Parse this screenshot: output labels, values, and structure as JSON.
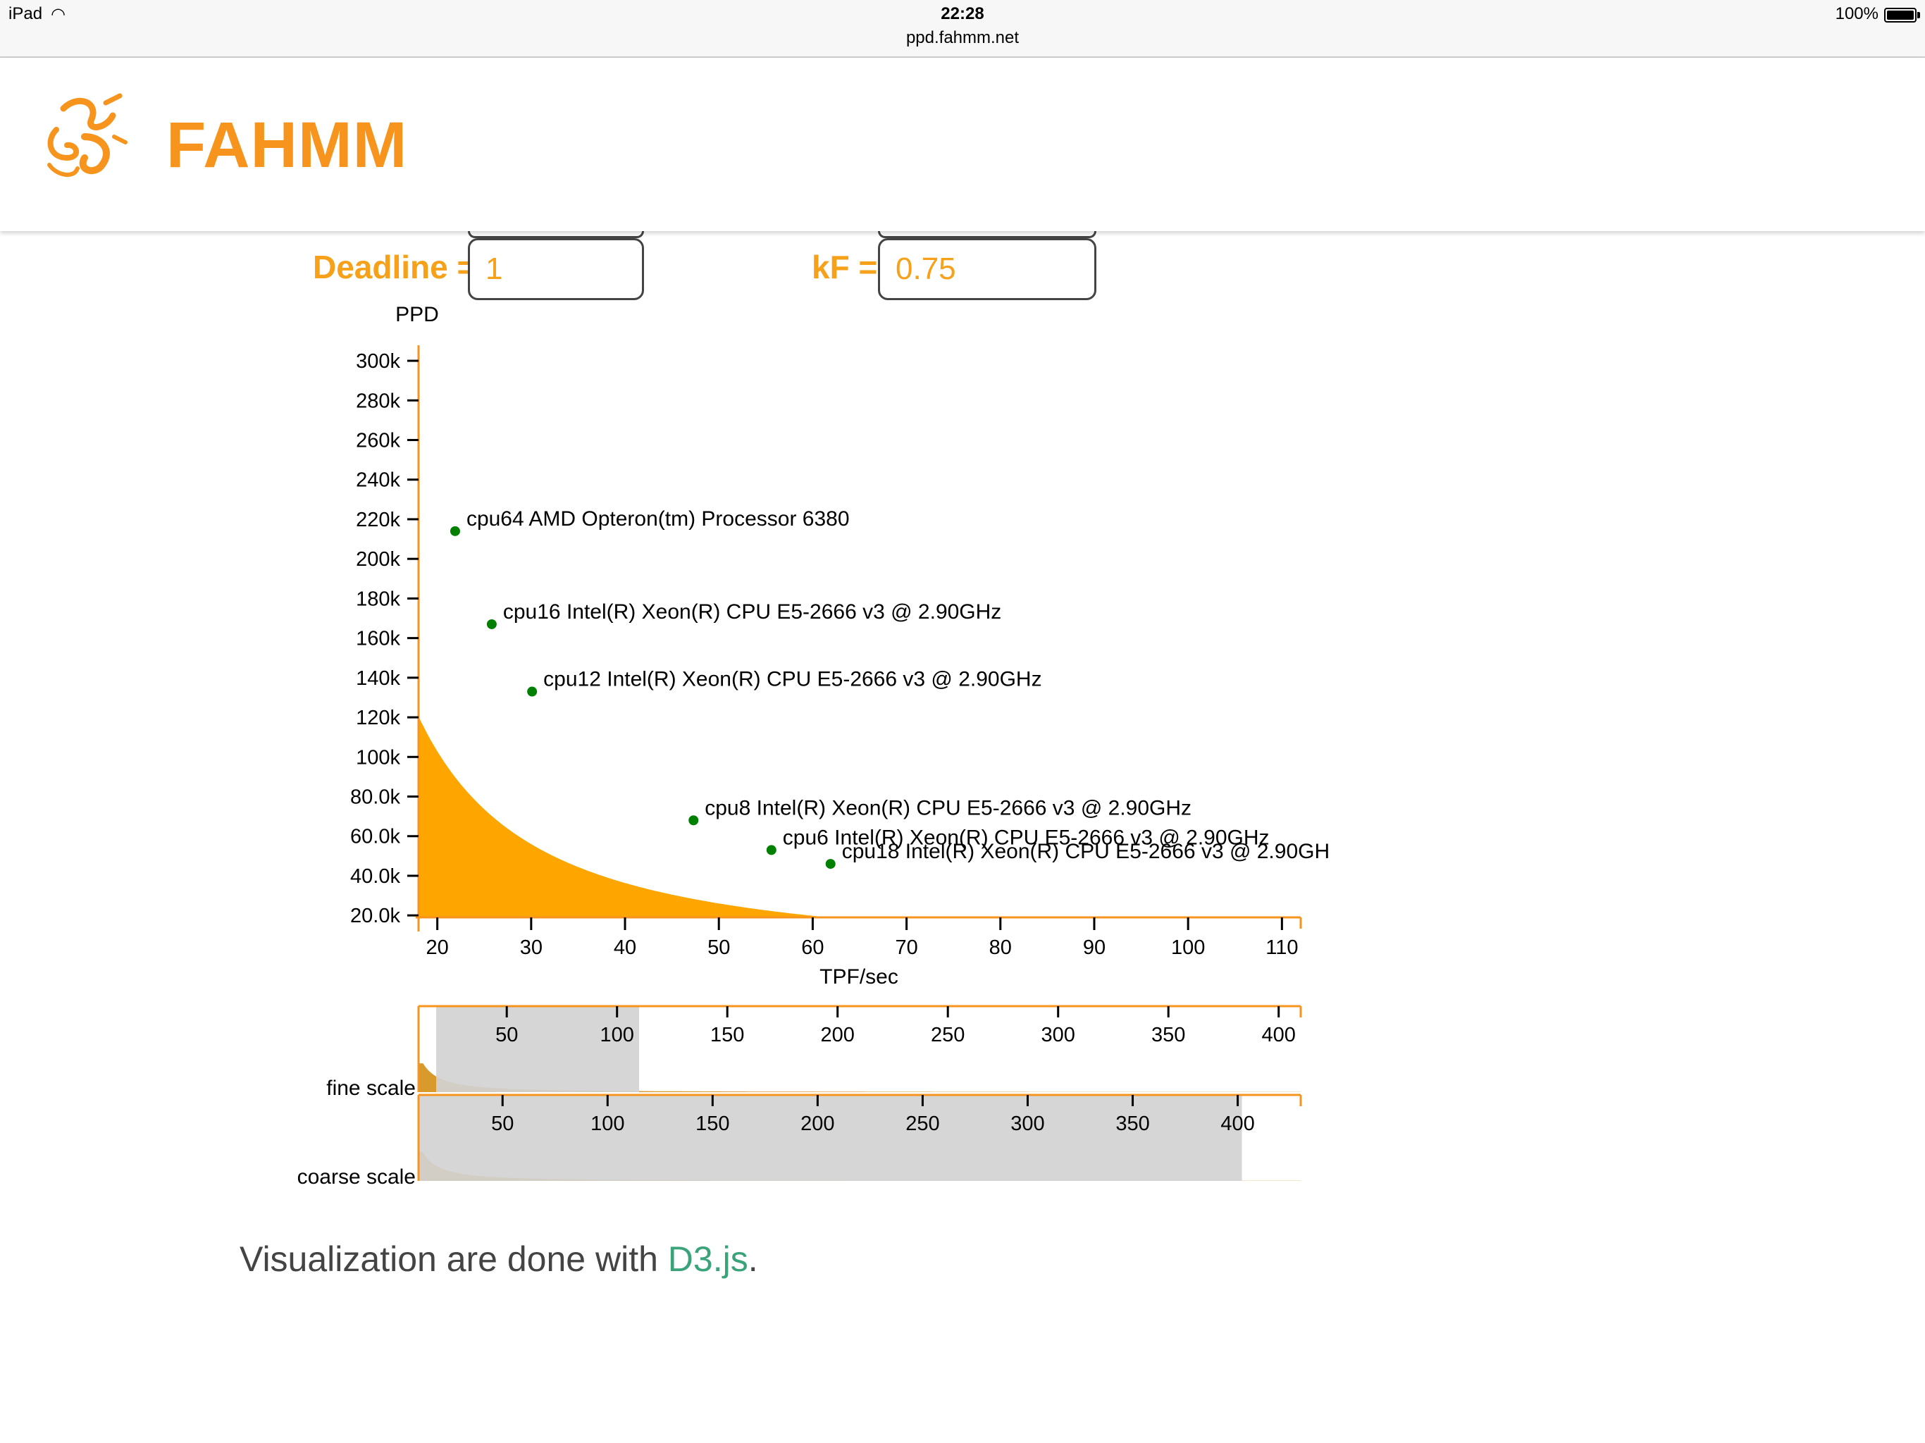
{
  "status_bar": {
    "device": "iPad",
    "time": "22:28",
    "url": "ppd.fahmm.net",
    "battery": "100%"
  },
  "header": {
    "brand": "FAHMM"
  },
  "form": {
    "deadline_label": "Deadline =",
    "deadline_value": "1",
    "kf_label": "kF =",
    "kf_value": "0.75"
  },
  "chart_data": {
    "type": "area",
    "ylabel": "PPD",
    "xlabel": "TPF/sec",
    "xlim": [
      18,
      112
    ],
    "ylim": [
      19000,
      305000
    ],
    "x_ticks": [
      20,
      30,
      40,
      50,
      60,
      70,
      80,
      90,
      100,
      110
    ],
    "y_ticks": [
      {
        "v": 20000,
        "label": "20.0k"
      },
      {
        "v": 40000,
        "label": "40.0k"
      },
      {
        "v": 60000,
        "label": "60.0k"
      },
      {
        "v": 80000,
        "label": "80.0k"
      },
      {
        "v": 100000,
        "label": "100k"
      },
      {
        "v": 120000,
        "label": "120k"
      },
      {
        "v": 140000,
        "label": "140k"
      },
      {
        "v": 160000,
        "label": "160k"
      },
      {
        "v": 180000,
        "label": "180k"
      },
      {
        "v": 200000,
        "label": "200k"
      },
      {
        "v": 220000,
        "label": "220k"
      },
      {
        "v": 240000,
        "label": "240k"
      },
      {
        "v": 260000,
        "label": "260k"
      },
      {
        "v": 280000,
        "label": "280k"
      },
      {
        "v": 300000,
        "label": "300k"
      }
    ],
    "curve": {
      "description_none": "",
      "coefficient": 9200000,
      "exponent": 1.5,
      "x_start": 18,
      "x_end": 110
    },
    "points": [
      {
        "x": 21.9,
        "y": 214000,
        "label": "cpu64 AMD Opteron(tm) Processor 6380"
      },
      {
        "x": 25.8,
        "y": 167000,
        "label": "cpu16 Intel(R) Xeon(R) CPU E5-2666 v3 @ 2.90GHz"
      },
      {
        "x": 30.1,
        "y": 133000,
        "label": "cpu12 Intel(R) Xeon(R) CPU E5-2666 v3 @ 2.90GHz"
      },
      {
        "x": 47.3,
        "y": 68000,
        "label": "cpu8 Intel(R) Xeon(R) CPU E5-2666 v3 @ 2.90GHz"
      },
      {
        "x": 55.6,
        "y": 53000,
        "label": "cpu6 Intel(R) Xeon(R) CPU E5-2666 v3 @ 2.90GHz"
      },
      {
        "x": 61.9,
        "y": 46000,
        "label": "cpu18 Intel(R) Xeon(R) CPU E5-2666 v3 @ 2.90GH"
      }
    ],
    "fill_color": "#ffa500",
    "point_color": "#008000",
    "axis_color": "#f7941d",
    "fine_scale": {
      "label": "fine scale",
      "xlim": [
        10,
        410
      ],
      "ticks": [
        50,
        100,
        150,
        200,
        250,
        300,
        350,
        400
      ],
      "selection": [
        18,
        110
      ]
    },
    "coarse_scale": {
      "label": "coarse scale",
      "xlim": [
        10,
        430
      ],
      "ticks": [
        50,
        100,
        150,
        200,
        250,
        300,
        350,
        400
      ],
      "selection": [
        10,
        402
      ]
    }
  },
  "footer": {
    "text": "Visualization are done with ",
    "link": "D3.js",
    "suffix": "."
  }
}
